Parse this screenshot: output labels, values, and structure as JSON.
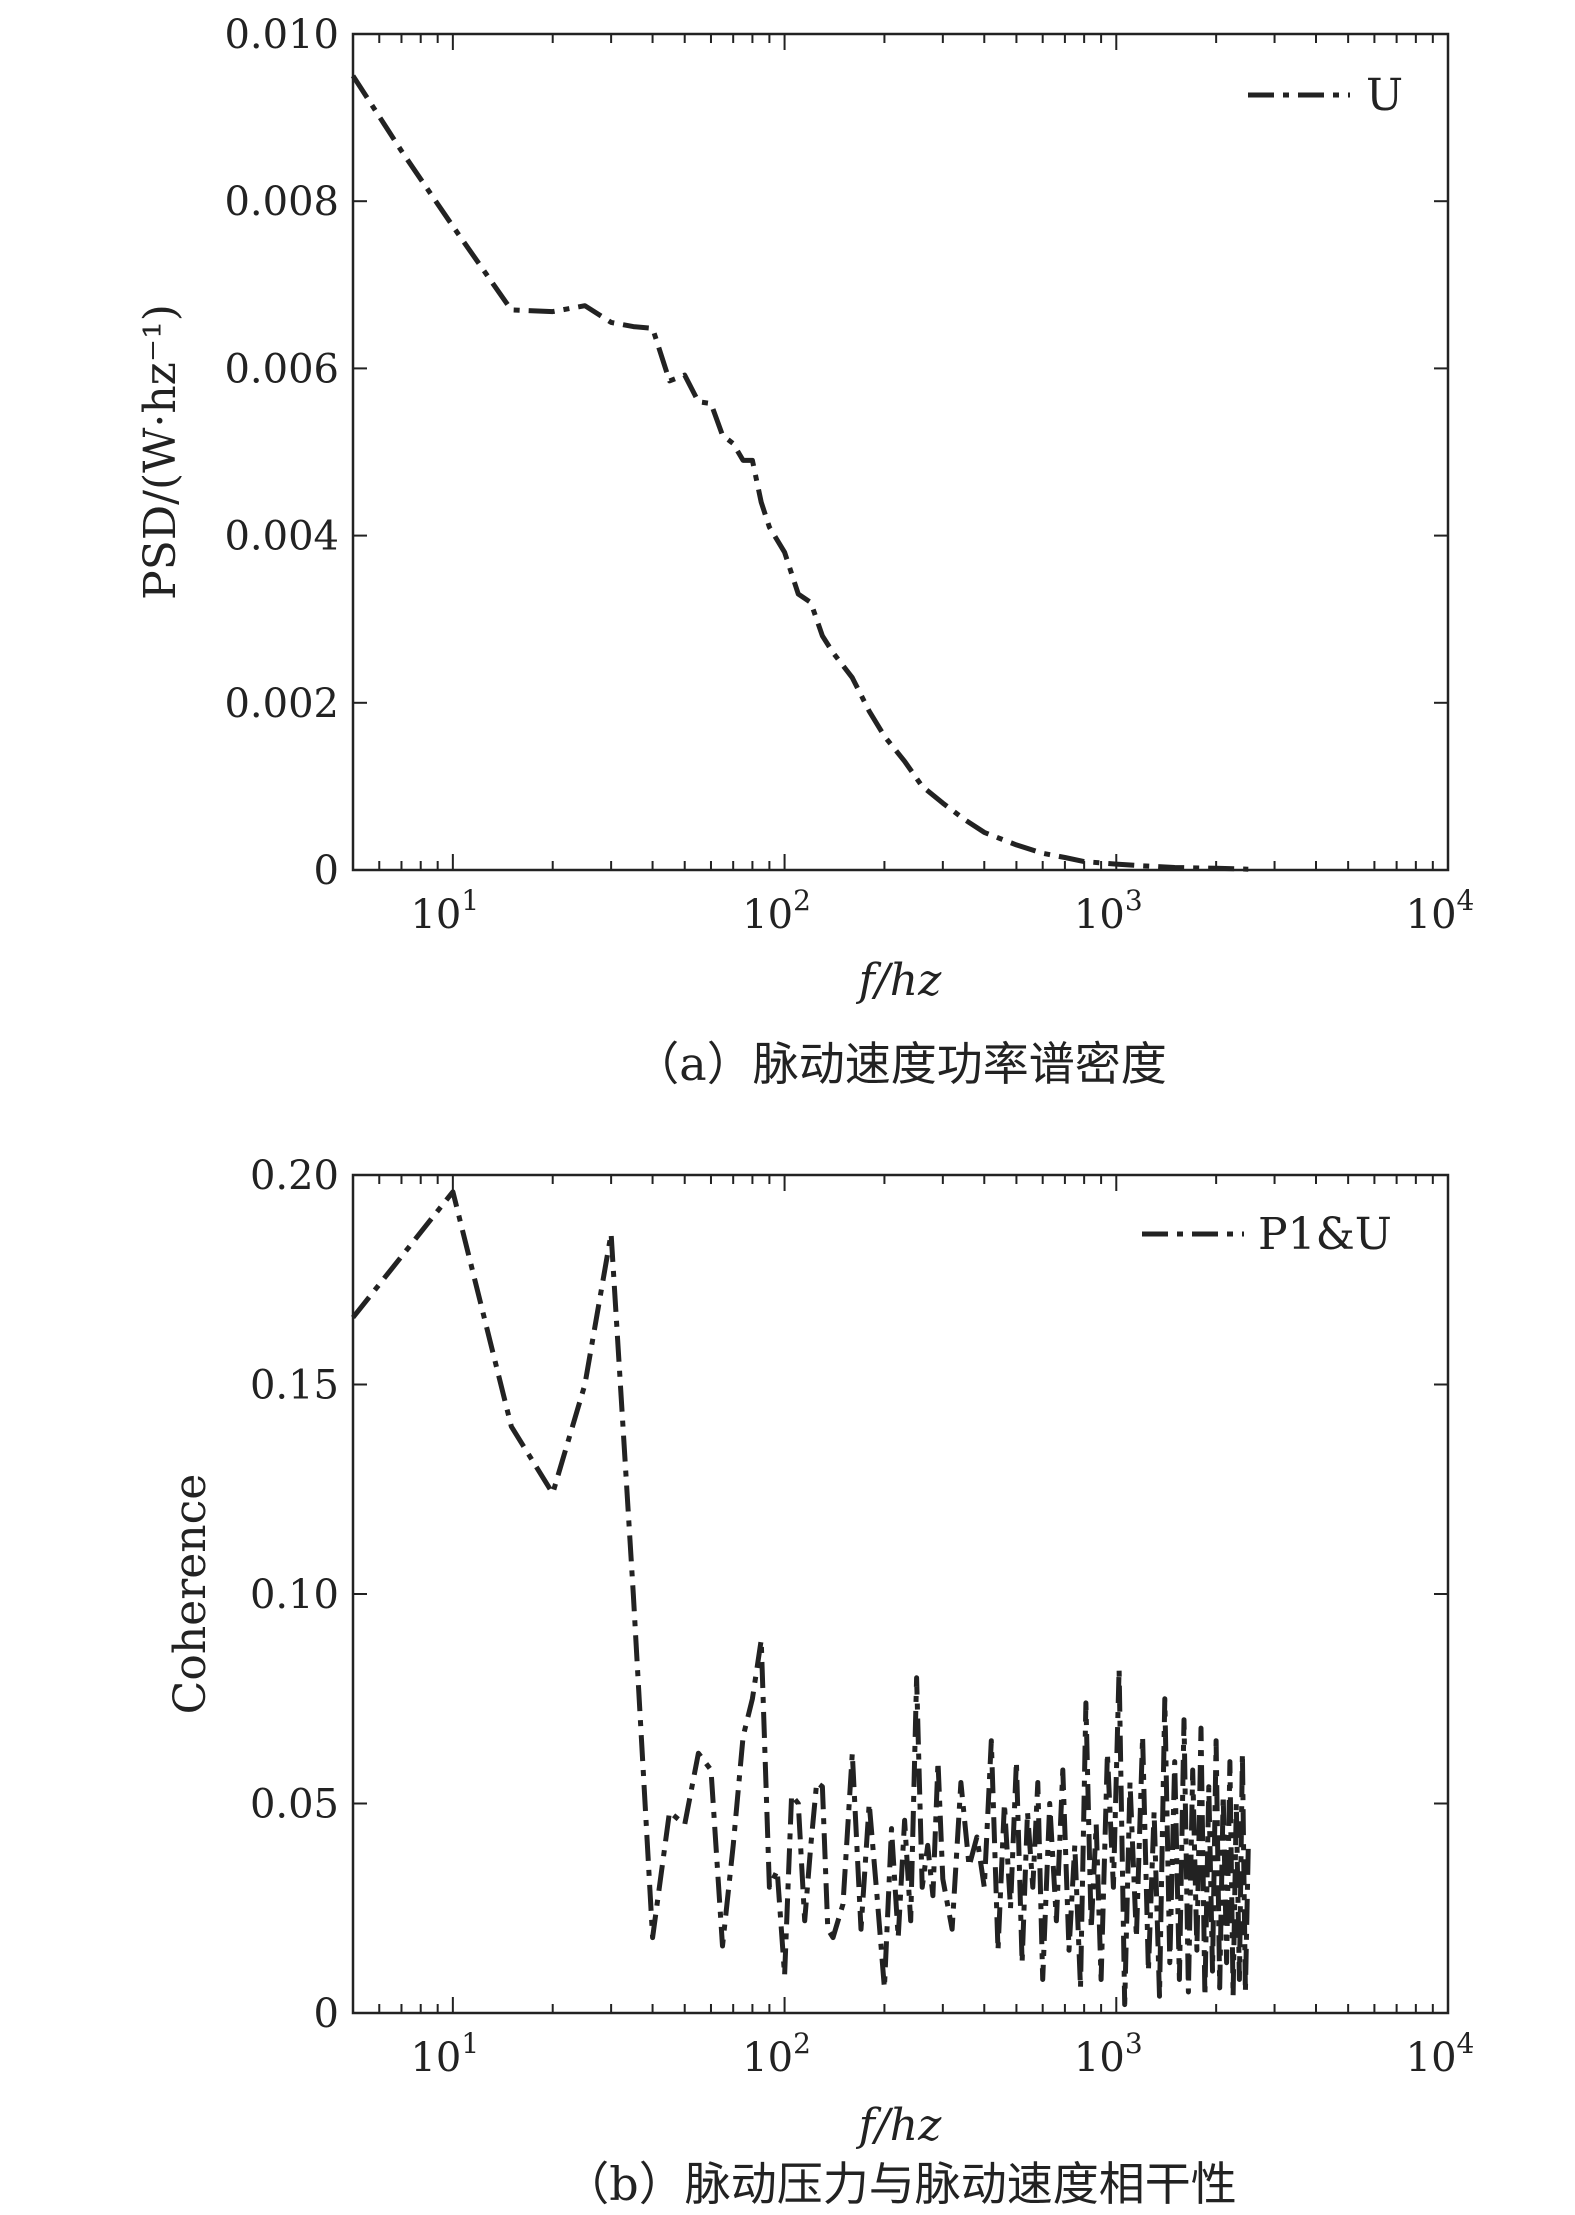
{
  "chart_data": [
    {
      "type": "line",
      "caption": "（a）脉动速度功率谱密度",
      "xlabel": "f/hz",
      "ylabel": "PSD/(W·hz⁻¹)",
      "xscale": "log",
      "xlim": [
        5,
        10000
      ],
      "ylim": [
        0,
        0.01
      ],
      "yticks": [
        "0",
        "0.002",
        "0.004",
        "0.006",
        "0.008",
        "0.010"
      ],
      "ytick_values": [
        0,
        0.002,
        0.004,
        0.006,
        0.008,
        0.01
      ],
      "xticks": [
        {
          "base": "10",
          "exp": "1",
          "value": 10
        },
        {
          "base": "10",
          "exp": "2",
          "value": 100
        },
        {
          "base": "10",
          "exp": "3",
          "value": 1000
        },
        {
          "base": "10",
          "exp": "4",
          "value": 10000
        }
      ],
      "legend": {
        "position": "top-right",
        "entries": [
          "U"
        ]
      },
      "grid": false,
      "series": [
        {
          "name": "U",
          "x": [
            5,
            7,
            10,
            15,
            20,
            25,
            30,
            35,
            40,
            45,
            50,
            55,
            60,
            65,
            70,
            75,
            80,
            85,
            90,
            100,
            110,
            120,
            130,
            140,
            160,
            180,
            200,
            230,
            260,
            300,
            350,
            400,
            500,
            600,
            700,
            800,
            1000,
            1200,
            1500,
            2000,
            2500
          ],
          "y": [
            0.0095,
            0.0086,
            0.0077,
            0.0067,
            0.00668,
            0.00675,
            0.00655,
            0.0065,
            0.00648,
            0.00585,
            0.00592,
            0.0056,
            0.00558,
            0.0052,
            0.0051,
            0.0049,
            0.0049,
            0.0044,
            0.0041,
            0.0038,
            0.0033,
            0.0032,
            0.0028,
            0.0026,
            0.0023,
            0.0019,
            0.0016,
            0.0013,
            0.001,
            0.0008,
            0.0006,
            0.00045,
            0.0003,
            0.0002,
            0.00015,
            0.0001,
            7e-05,
            5e-05,
            3e-05,
            2e-05,
            1e-05
          ]
        }
      ]
    },
    {
      "type": "line",
      "caption": "（b）脉动压力与脉动速度相干性",
      "xlabel": "f/hz",
      "ylabel": "Coherence",
      "xscale": "log",
      "xlim": [
        5,
        10000
      ],
      "ylim": [
        0,
        0.2
      ],
      "yticks": [
        "0",
        "0.05",
        "0.10",
        "0.15",
        "0.20"
      ],
      "ytick_values": [
        0,
        0.05,
        0.1,
        0.15,
        0.2
      ],
      "xticks": [
        {
          "base": "10",
          "exp": "1",
          "value": 10
        },
        {
          "base": "10",
          "exp": "2",
          "value": 100
        },
        {
          "base": "10",
          "exp": "3",
          "value": 1000
        },
        {
          "base": "10",
          "exp": "4",
          "value": 10000
        }
      ],
      "legend": {
        "position": "top-right",
        "entries": [
          "P1&U"
        ]
      },
      "grid": false,
      "series": [
        {
          "name": "P1&U",
          "x": [
            5,
            10,
            15,
            20,
            25,
            30,
            35,
            40,
            45,
            50,
            55,
            60,
            65,
            70,
            75,
            80,
            85,
            90,
            95,
            100,
            105,
            110,
            115,
            120,
            125,
            130,
            135,
            140,
            150,
            160,
            170,
            180,
            190,
            200,
            210,
            220,
            230,
            240,
            250,
            260,
            270,
            280,
            290,
            300,
            320,
            340,
            360,
            380,
            400,
            420,
            440,
            460,
            480,
            500,
            520,
            540,
            560,
            580,
            600,
            630,
            660,
            690,
            720,
            750,
            780,
            810,
            840,
            870,
            900,
            940,
            980,
            1020,
            1060,
            1100,
            1150,
            1200,
            1250,
            1300,
            1350,
            1400,
            1450,
            1500,
            1550,
            1600,
            1650,
            1700,
            1750,
            1800,
            1850,
            1900,
            1950,
            2000,
            2050,
            2100,
            2150,
            2200,
            2250,
            2300,
            2350,
            2400,
            2450,
            2500
          ],
          "y": [
            0.166,
            0.196,
            0.14,
            0.124,
            0.15,
            0.186,
            0.1,
            0.018,
            0.048,
            0.045,
            0.062,
            0.058,
            0.016,
            0.04,
            0.066,
            0.075,
            0.089,
            0.03,
            0.034,
            0.009,
            0.052,
            0.05,
            0.022,
            0.04,
            0.055,
            0.054,
            0.02,
            0.018,
            0.026,
            0.062,
            0.02,
            0.05,
            0.028,
            0.006,
            0.044,
            0.018,
            0.046,
            0.022,
            0.08,
            0.03,
            0.04,
            0.028,
            0.06,
            0.032,
            0.02,
            0.055,
            0.035,
            0.042,
            0.03,
            0.065,
            0.015,
            0.05,
            0.025,
            0.06,
            0.012,
            0.048,
            0.03,
            0.055,
            0.008,
            0.05,
            0.022,
            0.058,
            0.015,
            0.04,
            0.006,
            0.074,
            0.02,
            0.045,
            0.008,
            0.062,
            0.03,
            0.082,
            0.002,
            0.055,
            0.018,
            0.066,
            0.01,
            0.048,
            0.004,
            0.075,
            0.012,
            0.06,
            0.008,
            0.07,
            0.005,
            0.058,
            0.015,
            0.068,
            0.004,
            0.054,
            0.01,
            0.065,
            0.006,
            0.052,
            0.012,
            0.06,
            0.004,
            0.05,
            0.008,
            0.062,
            0.005,
            0.04
          ]
        }
      ]
    }
  ]
}
